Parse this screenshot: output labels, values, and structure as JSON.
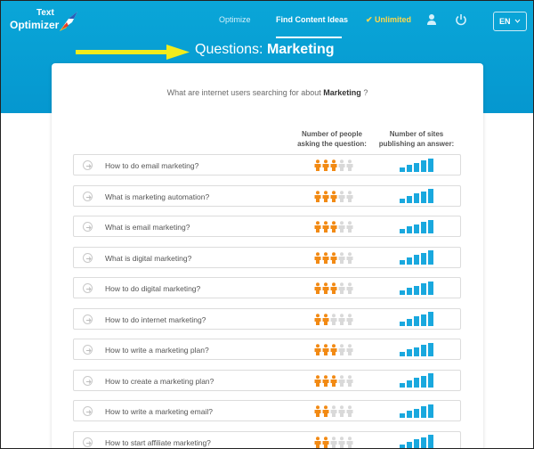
{
  "header": {
    "logo_line1": "Text",
    "logo_line2": "Optimizer",
    "nav": [
      {
        "label": "Optimize"
      },
      {
        "label": "Find Content Ideas"
      }
    ],
    "unlimited": "✔ Unlimited",
    "lang": "EN"
  },
  "page": {
    "title_prefix": "Questions:",
    "title_topic": "Marketing"
  },
  "card": {
    "subtitle_prefix": "What are internet users searching for about",
    "subtitle_topic": "Marketing",
    "subtitle_suffix": "?",
    "col1_line1": "Number of people",
    "col1_line2": "asking the question:",
    "col2_line1": "Number of sites",
    "col2_line2": "publishing an answer:"
  },
  "colors": {
    "accent": "#0aa6d8",
    "people_on": "#f28a14",
    "people_off": "#d9d9d9",
    "bars": "#19a8de",
    "arrow": "#f2ec1c"
  },
  "questions": [
    {
      "text": "How to do email marketing?",
      "people": 3,
      "sites": 5
    },
    {
      "text": "What is marketing automation?",
      "people": 3,
      "sites": 5
    },
    {
      "text": "What is email marketing?",
      "people": 3,
      "sites": 5
    },
    {
      "text": "What is digital marketing?",
      "people": 3,
      "sites": 5
    },
    {
      "text": "How to do digital marketing?",
      "people": 3,
      "sites": 5
    },
    {
      "text": "How to do internet marketing?",
      "people": 2,
      "sites": 5
    },
    {
      "text": "How to write a marketing plan?",
      "people": 3,
      "sites": 5
    },
    {
      "text": "How to create a marketing plan?",
      "people": 3,
      "sites": 5
    },
    {
      "text": "How to write a marketing email?",
      "people": 2,
      "sites": 5
    },
    {
      "text": "How to start affiliate marketing?",
      "people": 2,
      "sites": 5
    }
  ]
}
